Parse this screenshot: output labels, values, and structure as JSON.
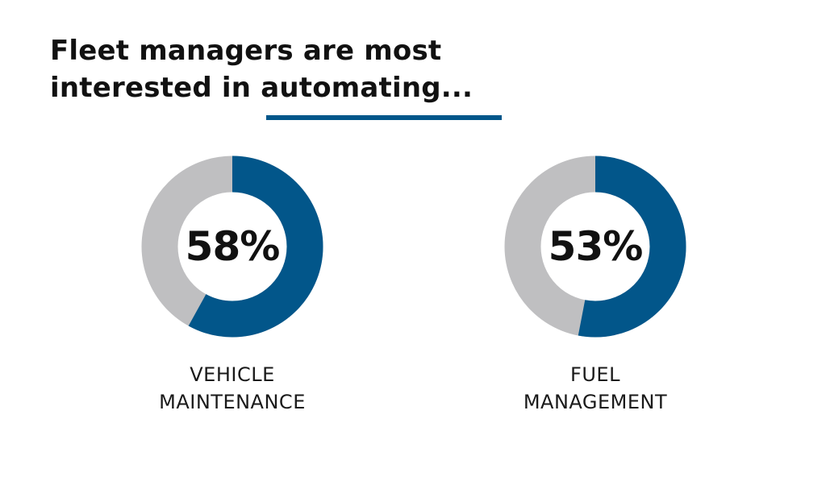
{
  "title_lines": [
    "Fleet managers are most",
    "interested in automating..."
  ],
  "colors": {
    "accent": "#02568a",
    "track": "#bfbfc1",
    "text": "#111111"
  },
  "chart_data": {
    "type": "pie",
    "charts": [
      {
        "value": 58,
        "value_label": "58%",
        "label_lines": [
          "VEHICLE",
          "MAINTENANCE"
        ]
      },
      {
        "value": 53,
        "value_label": "53%",
        "label_lines": [
          "FUEL",
          "MANAGEMENT"
        ]
      }
    ]
  }
}
